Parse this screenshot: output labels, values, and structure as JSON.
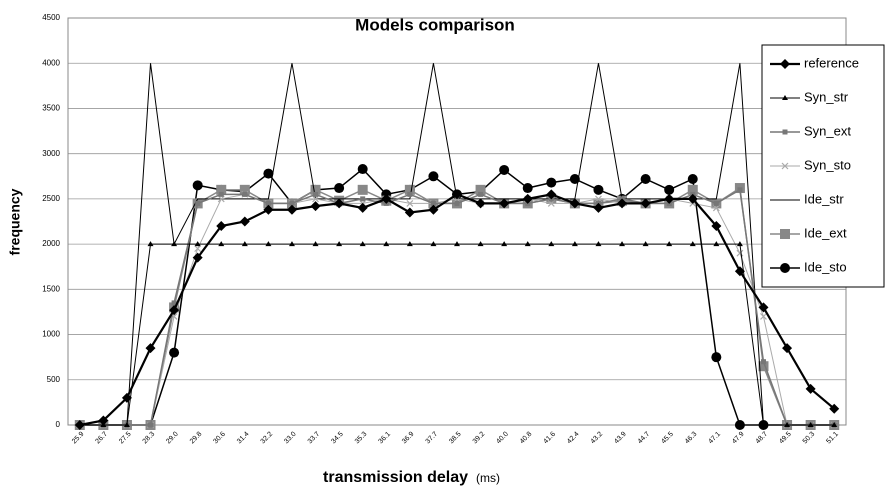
{
  "chart_data": {
    "type": "line",
    "title": "Models comparison",
    "x_label": "transmission delay",
    "x_unit": "(ms)",
    "y_label": "frequency",
    "categories": [
      "25.9",
      "26.7",
      "27.5",
      "28.3",
      "29.0",
      "29.8",
      "30.6",
      "31.4",
      "32.2",
      "33.0",
      "33.7",
      "34.5",
      "35.3",
      "36.1",
      "36.9",
      "37.7",
      "38.5",
      "39.2",
      "40.0",
      "40.8",
      "41.6",
      "42.4",
      "43.2",
      "43.9",
      "44.7",
      "45.5",
      "46.3",
      "47.1",
      "47.9",
      "48.7",
      "49.5",
      "50.3",
      "51.1"
    ],
    "ylim": [
      0,
      4500
    ],
    "yticks": [
      0,
      500,
      1000,
      1500,
      2000,
      2500,
      3000,
      3500,
      4000,
      4500
    ],
    "grid": true,
    "legend": "right",
    "series": [
      {
        "name": "reference",
        "color": "#000000",
        "marker": "diamond",
        "width": 2.2,
        "values": [
          0,
          50,
          300,
          850,
          1270,
          1850,
          2200,
          2250,
          2380,
          2380,
          2420,
          2450,
          2400,
          2500,
          2350,
          2380,
          2550,
          2450,
          2450,
          2500,
          2550,
          2450,
          2400,
          2450,
          2450,
          2500,
          2500,
          2200,
          1700,
          1300,
          850,
          400,
          180
        ]
      },
      {
        "name": "Syn_str",
        "color": "#000000",
        "marker": "triangle",
        "width": 1,
        "values": [
          0,
          0,
          0,
          2000,
          2000,
          2000,
          2000,
          2000,
          2000,
          2000,
          2000,
          2000,
          2000,
          2000,
          2000,
          2000,
          2000,
          2000,
          2000,
          2000,
          2000,
          2000,
          2000,
          2000,
          2000,
          2000,
          2000,
          2000,
          2000,
          0,
          0,
          0,
          0
        ]
      },
      {
        "name": "Syn_ext",
        "color": "#777777",
        "marker": "square-small",
        "width": 1.5,
        "values": [
          0,
          0,
          0,
          0,
          1350,
          2450,
          2550,
          2550,
          2450,
          2450,
          2550,
          2450,
          2500,
          2450,
          2550,
          2450,
          2450,
          2550,
          2450,
          2450,
          2500,
          2450,
          2450,
          2500,
          2450,
          2450,
          2550,
          2450,
          2600,
          700,
          0,
          0,
          0
        ]
      },
      {
        "name": "Syn_sto",
        "color": "#aaaaaa",
        "marker": "x",
        "width": 1,
        "values": [
          0,
          0,
          0,
          0,
          1200,
          1950,
          2500,
          2550,
          2450,
          2450,
          2500,
          2450,
          2450,
          2500,
          2450,
          2450,
          2500,
          2450,
          2450,
          2500,
          2450,
          2450,
          2500,
          2450,
          2450,
          2500,
          2450,
          2400,
          1900,
          1200,
          0,
          0,
          0
        ]
      },
      {
        "name": "Ide_str",
        "color": "#000000",
        "marker": "none",
        "width": 1,
        "values": [
          0,
          0,
          0,
          4000,
          2000,
          2500,
          2500,
          2500,
          2500,
          4000,
          2500,
          2500,
          2500,
          2500,
          2500,
          4000,
          2500,
          2500,
          2500,
          2500,
          2500,
          2500,
          4000,
          2500,
          2500,
          2500,
          2500,
          2500,
          4000,
          0,
          0,
          0,
          0
        ]
      },
      {
        "name": "Ide_ext",
        "color": "#888888",
        "marker": "square",
        "width": 1.5,
        "values": [
          0,
          0,
          0,
          0,
          1300,
          2450,
          2600,
          2600,
          2450,
          2450,
          2600,
          2480,
          2600,
          2480,
          2600,
          2450,
          2450,
          2600,
          2450,
          2450,
          2500,
          2450,
          2450,
          2480,
          2450,
          2450,
          2600,
          2450,
          2620,
          650,
          0,
          0,
          0
        ]
      },
      {
        "name": "Ide_sto",
        "color": "#000000",
        "marker": "circle",
        "width": 1.5,
        "values": [
          0,
          0,
          0,
          0,
          800,
          2650,
          2600,
          2580,
          2780,
          2450,
          2600,
          2620,
          2830,
          2550,
          2600,
          2750,
          2550,
          2580,
          2820,
          2620,
          2680,
          2720,
          2600,
          2500,
          2720,
          2600,
          2720,
          750,
          0,
          0,
          0,
          0,
          0
        ]
      }
    ]
  }
}
